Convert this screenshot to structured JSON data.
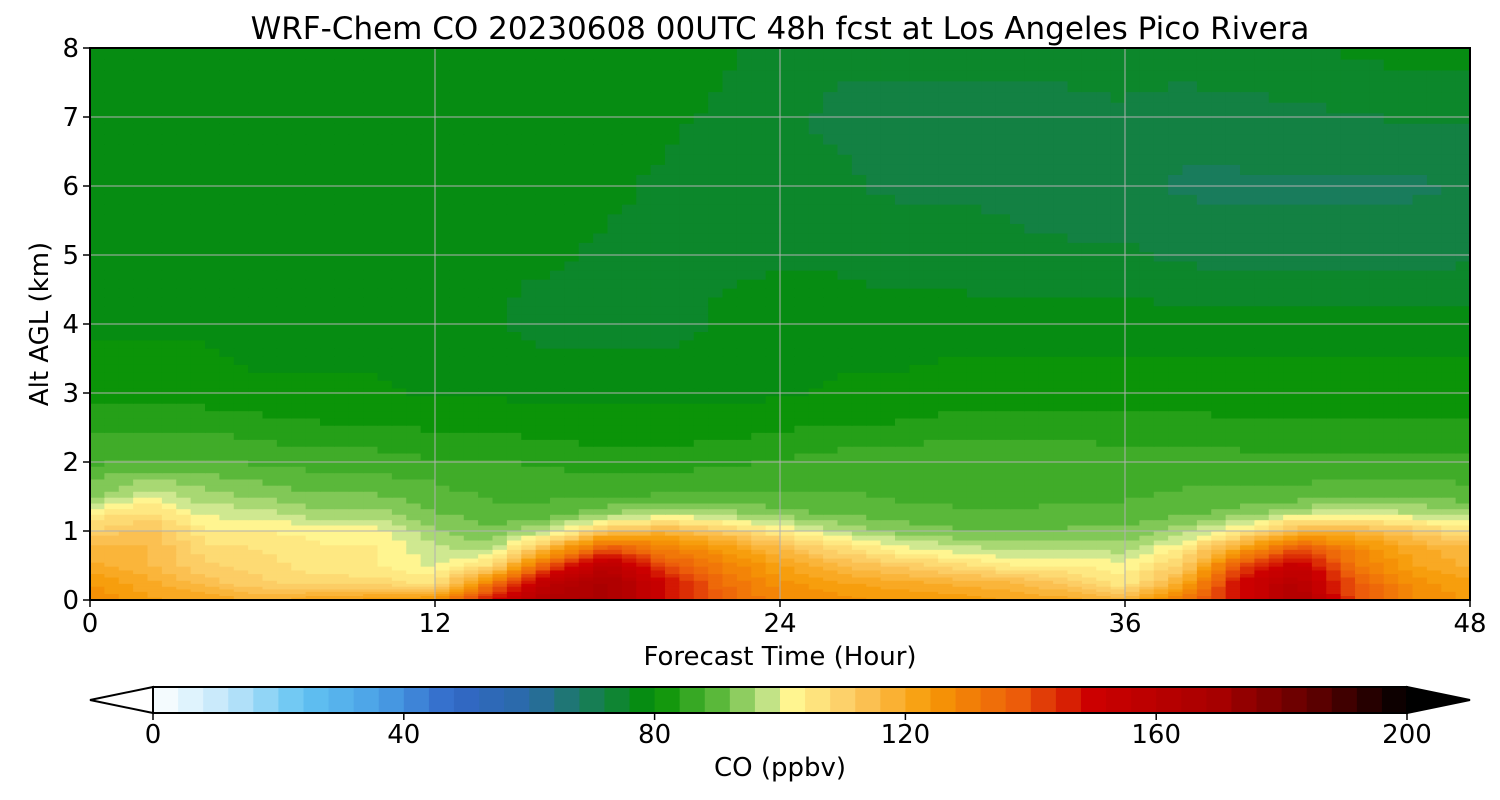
{
  "chart_data": {
    "type": "heatmap",
    "title": "WRF-Chem CO  20230608 00UTC 48h fcst at Los Angeles Pico Rivera",
    "xlabel": "Forecast Time (Hour)",
    "ylabel": "Alt AGL (km)",
    "xlim": [
      0,
      48
    ],
    "ylim": [
      0,
      8
    ],
    "x_ticks": [
      0,
      12,
      24,
      36,
      48
    ],
    "y_ticks": [
      0,
      1,
      2,
      3,
      4,
      5,
      6,
      7,
      8
    ],
    "grid": true,
    "colorbar": {
      "label": "CO  (ppbv)",
      "range": [
        0,
        200
      ],
      "ticks": [
        0,
        40,
        80,
        120,
        160,
        200
      ],
      "extend": "both",
      "orientation": "horizontal",
      "placement": "bottom",
      "colormap_stops": [
        {
          "value": 0,
          "color": "#ffffff"
        },
        {
          "value": 12,
          "color": "#bfe6fa"
        },
        {
          "value": 24,
          "color": "#62c3f2"
        },
        {
          "value": 36,
          "color": "#4aa0e6"
        },
        {
          "value": 48,
          "color": "#3268c8"
        },
        {
          "value": 60,
          "color": "#2a6aa6"
        },
        {
          "value": 68,
          "color": "#1b7a64"
        },
        {
          "value": 80,
          "color": "#029002"
        },
        {
          "value": 90,
          "color": "#5ab83a"
        },
        {
          "value": 99,
          "color": "#cfe890"
        },
        {
          "value": 102,
          "color": "#fff590"
        },
        {
          "value": 112,
          "color": "#fcc860"
        },
        {
          "value": 124,
          "color": "#f79a05"
        },
        {
          "value": 138,
          "color": "#ec5c0a"
        },
        {
          "value": 150,
          "color": "#cc0000"
        },
        {
          "value": 170,
          "color": "#a60000"
        },
        {
          "value": 185,
          "color": "#600000"
        },
        {
          "value": 200,
          "color": "#000000"
        }
      ]
    },
    "profile_x_hours": [
      0,
      2,
      4,
      6,
      8,
      10,
      12,
      14,
      16,
      18,
      20,
      22,
      24,
      26,
      28,
      30,
      32,
      34,
      36,
      38,
      40,
      42,
      44,
      46,
      48
    ],
    "profile_altitudes_km": [
      0,
      0.25,
      0.5,
      0.75,
      1.0,
      1.25,
      1.5,
      2.0,
      2.5,
      3.0,
      4.0,
      5.0,
      6.0,
      7.0,
      8.0
    ],
    "values": [
      [
        128,
        122,
        122,
        118,
        122,
        124,
        126,
        150,
        165,
        168,
        150,
        136,
        128,
        126,
        124,
        124,
        122,
        120,
        118,
        132,
        148,
        165,
        140,
        128,
        124
      ],
      [
        124,
        120,
        114,
        110,
        108,
        108,
        106,
        132,
        160,
        168,
        150,
        134,
        126,
        122,
        120,
        118,
        116,
        112,
        104,
        120,
        150,
        162,
        138,
        126,
        122
      ],
      [
        120,
        116,
        110,
        108,
        105,
        104,
        100,
        108,
        140,
        160,
        140,
        130,
        122,
        116,
        112,
        108,
        104,
        104,
        102,
        110,
        140,
        155,
        132,
        122,
        118
      ],
      [
        116,
        116,
        108,
        106,
        104,
        104,
        98,
        96,
        118,
        140,
        130,
        124,
        116,
        108,
        102,
        99,
        97,
        97,
        96,
        104,
        122,
        140,
        128,
        120,
        116
      ],
      [
        110,
        114,
        104,
        104,
        102,
        102,
        95,
        92,
        98,
        114,
        118,
        112,
        104,
        98,
        94,
        92,
        91,
        92,
        92,
        96,
        104,
        118,
        118,
        112,
        106
      ],
      [
        104,
        108,
        100,
        99,
        96,
        96,
        92,
        90,
        90,
        94,
        98,
        96,
        93,
        91,
        90,
        89,
        89,
        90,
        90,
        91,
        93,
        98,
        100,
        98,
        96
      ],
      [
        94,
        100,
        96,
        94,
        92,
        92,
        90,
        88,
        88,
        88,
        89,
        89,
        89,
        89,
        88,
        88,
        87,
        88,
        88,
        89,
        89,
        90,
        91,
        91,
        90
      ],
      [
        88,
        89,
        89,
        88,
        87,
        87,
        86,
        86,
        85,
        84,
        84,
        85,
        86,
        87,
        88,
        88,
        88,
        88,
        87,
        87,
        87,
        86,
        86,
        86,
        86
      ],
      [
        85,
        85,
        85,
        84,
        83,
        83,
        82,
        82,
        81,
        81,
        81,
        81,
        82,
        83,
        83,
        84,
        84,
        84,
        84,
        84,
        83,
        83,
        83,
        83,
        83
      ],
      [
        81,
        81,
        81,
        80,
        80,
        80,
        79,
        79,
        79,
        79,
        79,
        79,
        79,
        80,
        80,
        81,
        81,
        81,
        81,
        81,
        81,
        81,
        81,
        81,
        81
      ],
      [
        79,
        79,
        79,
        78,
        78,
        78,
        78,
        77,
        75,
        75,
        75,
        77,
        78,
        78,
        78,
        78,
        78,
        78,
        78,
        78,
        78,
        78,
        78,
        78,
        78
      ],
      [
        78,
        78,
        78,
        78,
        77,
        77,
        77,
        77,
        77,
        76,
        76,
        76,
        76,
        76,
        75,
        75,
        74,
        74,
        74,
        73,
        72,
        72,
        72,
        72,
        73
      ],
      [
        78,
        78,
        78,
        78,
        78,
        78,
        78,
        78,
        78,
        77,
        76,
        75,
        74,
        74,
        73,
        73,
        73,
        72,
        71,
        70,
        70,
        70,
        70,
        70,
        71
      ],
      [
        79,
        78,
        78,
        78,
        78,
        78,
        78,
        78,
        78,
        78,
        77,
        76,
        74,
        73,
        73,
        73,
        73,
        73,
        73,
        72,
        72,
        73,
        73,
        74,
        74
      ],
      [
        79,
        79,
        79,
        79,
        79,
        79,
        79,
        79,
        79,
        79,
        78,
        77,
        75,
        74,
        74,
        74,
        74,
        74,
        75,
        75,
        76,
        76,
        77,
        78,
        78
      ]
    ]
  }
}
